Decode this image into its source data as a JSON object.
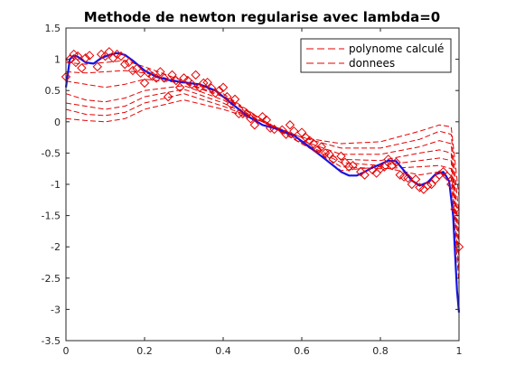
{
  "chart_data": {
    "type": "line",
    "title": "Methode de newton regularise avec lambda=0",
    "xlabel": "",
    "ylabel": "",
    "xlim": [
      0,
      1
    ],
    "ylim": [
      -3.5,
      1.5
    ],
    "xticks": [
      "0",
      "0.2",
      "0.4",
      "0.6",
      "0.8",
      "1"
    ],
    "yticks": [
      "1.5",
      "1",
      "0.5",
      "0",
      "-0.5",
      "-1",
      "-1.5",
      "-2",
      "-2.5",
      "-3",
      "-3.5"
    ],
    "grid": false,
    "legend_position": "top-right",
    "legend": [
      {
        "label": "polynome calculé",
        "style": "red-dashed"
      },
      {
        "label": "donnees",
        "style": "red-dashed"
      }
    ],
    "colors": {
      "final_curve": "#1414e6",
      "iterates": "#e60000",
      "markers": "#e60000"
    },
    "final_curve": {
      "name": "",
      "x": [
        0.0,
        0.01,
        0.02,
        0.03,
        0.05,
        0.07,
        0.09,
        0.11,
        0.13,
        0.15,
        0.17,
        0.2,
        0.23,
        0.26,
        0.3,
        0.34,
        0.38,
        0.42,
        0.46,
        0.5,
        0.54,
        0.58,
        0.62,
        0.66,
        0.7,
        0.72,
        0.74,
        0.76,
        0.78,
        0.8,
        0.82,
        0.84,
        0.86,
        0.88,
        0.9,
        0.92,
        0.94,
        0.96,
        0.975,
        0.985,
        0.99,
        0.995,
        1.0
      ],
      "y": [
        0.55,
        1.0,
        1.06,
        1.04,
        0.95,
        0.93,
        1.02,
        1.07,
        1.1,
        1.07,
        0.98,
        0.82,
        0.72,
        0.67,
        0.63,
        0.6,
        0.5,
        0.3,
        0.1,
        -0.05,
        -0.12,
        -0.22,
        -0.4,
        -0.6,
        -0.8,
        -0.86,
        -0.86,
        -0.8,
        -0.73,
        -0.68,
        -0.62,
        -0.63,
        -0.78,
        -0.94,
        -1.02,
        -0.97,
        -0.84,
        -0.8,
        -0.95,
        -1.5,
        -2.1,
        -2.7,
        -3.05
      ]
    },
    "iterates": [
      {
        "x": [
          0.0,
          0.05,
          0.1,
          0.15,
          0.2,
          0.3,
          0.4,
          0.5,
          0.6,
          0.7,
          0.8,
          0.9,
          0.95,
          0.98,
          1.0
        ],
        "y": [
          0.05,
          0.02,
          0.0,
          0.05,
          0.2,
          0.35,
          0.2,
          0.0,
          -0.25,
          -0.35,
          -0.32,
          -0.15,
          -0.05,
          -0.08,
          -1.2
        ]
      },
      {
        "x": [
          0.0,
          0.05,
          0.1,
          0.15,
          0.2,
          0.3,
          0.4,
          0.5,
          0.6,
          0.7,
          0.8,
          0.9,
          0.95,
          0.98,
          1.0
        ],
        "y": [
          0.2,
          0.12,
          0.1,
          0.15,
          0.3,
          0.45,
          0.25,
          0.0,
          -0.25,
          -0.42,
          -0.42,
          -0.28,
          -0.15,
          -0.2,
          -1.5
        ]
      },
      {
        "x": [
          0.0,
          0.05,
          0.1,
          0.15,
          0.2,
          0.3,
          0.4,
          0.5,
          0.6,
          0.7,
          0.8,
          0.9,
          0.95,
          0.98,
          1.0
        ],
        "y": [
          0.3,
          0.25,
          0.2,
          0.25,
          0.4,
          0.52,
          0.3,
          0.0,
          -0.3,
          -0.52,
          -0.52,
          -0.4,
          -0.3,
          -0.35,
          -1.8
        ]
      },
      {
        "x": [
          0.0,
          0.05,
          0.1,
          0.15,
          0.2,
          0.3,
          0.4,
          0.5,
          0.6,
          0.7,
          0.8,
          0.9,
          0.95,
          0.98,
          1.0
        ],
        "y": [
          0.45,
          0.35,
          0.32,
          0.38,
          0.5,
          0.58,
          0.35,
          0.0,
          -0.35,
          -0.6,
          -0.62,
          -0.5,
          -0.45,
          -0.5,
          -2.0
        ]
      },
      {
        "x": [
          0.0,
          0.05,
          0.1,
          0.15,
          0.2,
          0.3,
          0.4,
          0.5,
          0.6,
          0.7,
          0.8,
          0.9,
          0.95,
          0.98,
          1.0
        ],
        "y": [
          0.65,
          0.6,
          0.55,
          0.6,
          0.68,
          0.62,
          0.4,
          0.02,
          -0.35,
          -0.65,
          -0.7,
          -0.62,
          -0.58,
          -0.62,
          -2.2
        ]
      },
      {
        "x": [
          0.0,
          0.05,
          0.1,
          0.15,
          0.2,
          0.3,
          0.4,
          0.5,
          0.6,
          0.7,
          0.8,
          0.9,
          0.95,
          0.98,
          1.0
        ],
        "y": [
          0.8,
          0.78,
          0.8,
          0.82,
          0.78,
          0.63,
          0.42,
          0.03,
          -0.35,
          -0.72,
          -0.75,
          -0.72,
          -0.7,
          -0.75,
          -2.4
        ]
      },
      {
        "x": [
          0.0,
          0.05,
          0.1,
          0.15,
          0.2,
          0.3,
          0.4,
          0.5,
          0.6,
          0.7,
          0.8,
          0.9,
          0.95,
          0.98,
          1.0
        ],
        "y": [
          0.95,
          0.92,
          0.95,
          0.98,
          0.88,
          0.65,
          0.45,
          0.03,
          -0.33,
          -0.78,
          -0.72,
          -0.85,
          -0.8,
          -0.9,
          -2.6
        ]
      }
    ],
    "data_points": {
      "x": [
        0.0,
        0.01,
        0.02,
        0.025,
        0.03,
        0.04,
        0.05,
        0.06,
        0.08,
        0.09,
        0.1,
        0.11,
        0.12,
        0.13,
        0.14,
        0.15,
        0.16,
        0.17,
        0.18,
        0.19,
        0.2,
        0.21,
        0.22,
        0.23,
        0.24,
        0.25,
        0.26,
        0.27,
        0.28,
        0.29,
        0.3,
        0.31,
        0.32,
        0.33,
        0.34,
        0.35,
        0.36,
        0.37,
        0.38,
        0.39,
        0.4,
        0.41,
        0.42,
        0.43,
        0.44,
        0.45,
        0.46,
        0.47,
        0.48,
        0.5,
        0.51,
        0.52,
        0.53,
        0.55,
        0.56,
        0.57,
        0.58,
        0.6,
        0.61,
        0.62,
        0.63,
        0.64,
        0.65,
        0.66,
        0.67,
        0.68,
        0.7,
        0.71,
        0.72,
        0.73,
        0.75,
        0.76,
        0.78,
        0.79,
        0.8,
        0.81,
        0.82,
        0.83,
        0.84,
        0.85,
        0.86,
        0.87,
        0.88,
        0.89,
        0.9,
        0.91,
        0.92,
        0.93,
        0.94,
        0.95,
        0.96,
        0.97,
        0.98,
        0.99,
        1.0
      ],
      "y": [
        0.72,
        1.0,
        1.08,
        0.95,
        1.05,
        0.86,
        1.02,
        1.06,
        0.88,
        1.08,
        1.05,
        1.12,
        1.02,
        1.08,
        1.05,
        0.92,
        0.95,
        0.82,
        0.85,
        0.78,
        0.62,
        0.78,
        0.73,
        0.7,
        0.8,
        0.7,
        0.4,
        0.75,
        0.66,
        0.55,
        0.7,
        0.66,
        0.6,
        0.75,
        0.55,
        0.62,
        0.63,
        0.54,
        0.46,
        0.5,
        0.55,
        0.4,
        0.28,
        0.36,
        0.13,
        0.13,
        0.13,
        0.05,
        -0.05,
        0.08,
        0.03,
        -0.1,
        -0.12,
        -0.13,
        -0.2,
        -0.05,
        -0.15,
        -0.17,
        -0.25,
        -0.3,
        -0.35,
        -0.45,
        -0.4,
        -0.5,
        -0.52,
        -0.6,
        -0.55,
        -0.65,
        -0.72,
        -0.7,
        -0.8,
        -0.85,
        -0.77,
        -0.82,
        -0.75,
        -0.72,
        -0.6,
        -0.7,
        -0.65,
        -0.85,
        -0.88,
        -0.9,
        -1.0,
        -0.92,
        -1.05,
        -1.08,
        -1.02,
        -1.0,
        -0.92,
        -0.85,
        -0.8,
        -0.87,
        -1.0,
        -1.4,
        -2.0
      ]
    }
  }
}
